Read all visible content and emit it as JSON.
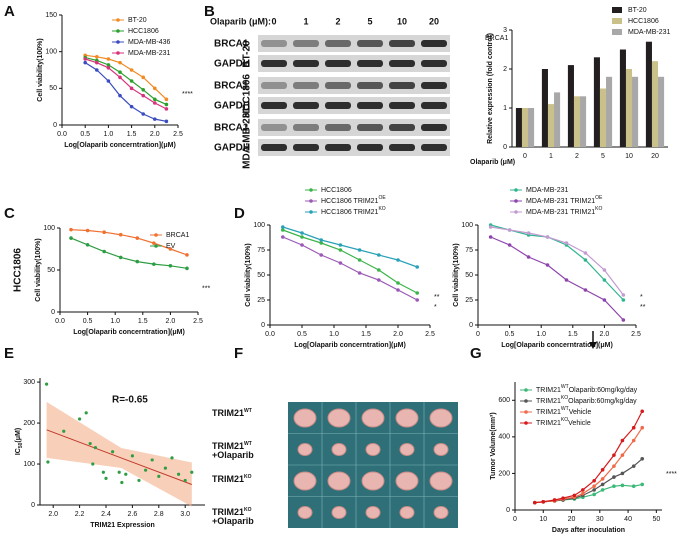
{
  "panels": [
    "A",
    "B",
    "C",
    "D",
    "E",
    "F",
    "G"
  ],
  "blot": {
    "treatment_label": "Olaparib (μM):",
    "doses": [
      "0",
      "1",
      "2",
      "5",
      "10",
      "20"
    ],
    "groups": [
      {
        "cell": "BT-20",
        "rows": [
          "BRCA1",
          "GAPDH"
        ]
      },
      {
        "cell": "HCC1806",
        "rows": [
          "BRCA1",
          "GAPDH"
        ]
      },
      {
        "cell": "MDA-MB-231",
        "rows": [
          "BRCA1",
          "GAPDH"
        ]
      }
    ]
  },
  "tumor": {
    "labels": [
      [
        "TRIM21",
        "WT"
      ],
      [
        "TRIM21",
        "WT",
        "+Olaparib"
      ],
      [
        "TRIM21",
        "KO"
      ],
      [
        "TRIM21",
        "KO",
        "+Olaparib"
      ]
    ]
  },
  "chart_data": [
    {
      "type": "line",
      "xlabel": "Log[Olaparib concerntration](μM)",
      "ylabel": "Cell viability(100%)",
      "xlim": [
        0,
        2.5
      ],
      "xticks": [
        {
          "value": 0,
          "label": "0.0"
        },
        0.5,
        {
          "value": 1,
          "label": "1.0"
        },
        1.5,
        {
          "value": 2,
          "label": "2.0"
        },
        2.5
      ],
      "ylim": [
        0,
        150
      ],
      "yticks": [
        0,
        50,
        100,
        150
      ],
      "legend": "upper right",
      "annotations": [
        "****"
      ],
      "x": [
        0.5,
        0.75,
        1.0,
        1.25,
        1.5,
        1.75,
        2.0,
        2.25
      ],
      "series": [
        {
          "name": "BT-20",
          "color": "#f08a24",
          "values": [
            95,
            93,
            90,
            85,
            75,
            65,
            50,
            35
          ]
        },
        {
          "name": "HCC1806",
          "color": "#2ca02c",
          "values": [
            92,
            88,
            82,
            72,
            60,
            48,
            35,
            28
          ]
        },
        {
          "name": "MDA-MB-436",
          "color": "#3b4cc0",
          "values": [
            85,
            75,
            60,
            40,
            25,
            15,
            8,
            5
          ]
        },
        {
          "name": "MDA-MB-231",
          "color": "#d6337a",
          "values": [
            90,
            85,
            78,
            65,
            50,
            40,
            30,
            22
          ]
        }
      ]
    },
    {
      "type": "bar",
      "title": "BRCA1",
      "xlabel": "Olaparib (μM)",
      "ylabel": "Relative expression (fold control)",
      "ylim": [
        0,
        3
      ],
      "yticks": [
        0,
        1,
        2,
        3
      ],
      "legend": "upper right",
      "categories": [
        "0",
        "1",
        "2",
        "5",
        "10",
        "20"
      ],
      "series": [
        {
          "name": "BT-20",
          "color": "#231f20",
          "values": [
            1,
            2,
            2.1,
            2.3,
            2.5,
            2.7
          ]
        },
        {
          "name": "HCC1806",
          "color": "#c9c08a",
          "values": [
            1,
            1.1,
            1.3,
            1.5,
            2,
            2.2
          ]
        },
        {
          "name": "MDA-MB-231",
          "color": "#a8a8a8",
          "values": [
            1,
            1.4,
            1.3,
            1.8,
            1.8,
            1.8
          ]
        }
      ]
    },
    {
      "type": "line",
      "side_label": "HCC1806",
      "xlabel": "Log[Olaparib concerntration](μM)",
      "ylabel": "Cell viability(100%)",
      "xlim": [
        0,
        2.5
      ],
      "xticks": [
        {
          "value": 0,
          "label": "0.0"
        },
        0.5,
        {
          "value": 1,
          "label": "1.0"
        },
        1.5,
        {
          "value": 2,
          "label": "2.0"
        },
        2.5
      ],
      "ylim": [
        0,
        100
      ],
      "yticks": [
        0,
        50,
        100
      ],
      "legend": "upper right",
      "annotations": [
        "***"
      ],
      "x": [
        0.2,
        0.5,
        0.8,
        1.1,
        1.4,
        1.7,
        2.0,
        2.3
      ],
      "series": [
        {
          "name": "BRCA1",
          "color": "#f07030",
          "values": [
            98,
            97,
            95,
            92,
            88,
            82,
            75,
            68
          ]
        },
        {
          "name": "EV",
          "color": "#2e9e44",
          "values": [
            88,
            80,
            72,
            65,
            60,
            57,
            55,
            52
          ]
        }
      ]
    },
    {
      "type": "line",
      "xlabel": "Log[Olaparib concerntration](μM)",
      "ylabel": "Cell viability(100%)",
      "xlim": [
        0,
        2.5
      ],
      "xticks": [
        {
          "value": 0,
          "label": "0.0"
        },
        0.5,
        {
          "value": 1,
          "label": "1.0"
        },
        1.5,
        {
          "value": 2,
          "label": "2.0"
        },
        2.5
      ],
      "ylim": [
        0,
        100
      ],
      "yticks": [
        0,
        25,
        50,
        75,
        100
      ],
      "legend": "upper left",
      "annotations": [
        "**",
        "*"
      ],
      "x": [
        0.2,
        0.5,
        0.8,
        1.1,
        1.4,
        1.7,
        2.0,
        2.3
      ],
      "series": [
        {
          "name": "HCC1806",
          "color": "#3cb44b",
          "values": [
            95,
            88,
            82,
            75,
            65,
            55,
            42,
            32
          ]
        },
        {
          "name": [
            "HCC1806 TRIM21",
            "OE"
          ],
          "color": "#9b59b6",
          "values": [
            88,
            80,
            70,
            62,
            52,
            45,
            35,
            25
          ]
        },
        {
          "name": [
            "HCC1806 TRIM21",
            "KO"
          ],
          "color": "#2aa1b8",
          "values": [
            98,
            92,
            85,
            80,
            75,
            70,
            65,
            58
          ]
        }
      ]
    },
    {
      "type": "line",
      "xlabel": "Log[Olaparib concerntration](μM)",
      "ylabel": "Cell viability(100%)",
      "xlim": [
        0,
        2.5
      ],
      "xticks": [
        0,
        0.5,
        {
          "value": 1,
          "label": "1.0"
        },
        1.5,
        {
          "value": 2,
          "label": "2.0"
        },
        2.5
      ],
      "ylim": [
        0,
        100
      ],
      "yticks": [
        0,
        25,
        50,
        75,
        100
      ],
      "legend": "upper left",
      "annotations": [
        "*",
        "**"
      ],
      "x": [
        0.2,
        0.5,
        0.8,
        1.1,
        1.4,
        1.7,
        2.0,
        2.3
      ],
      "series": [
        {
          "name": "MDA-MB-231",
          "color": "#2fb58e",
          "values": [
            100,
            95,
            90,
            88,
            80,
            65,
            45,
            25
          ]
        },
        {
          "name": [
            "MDA-MB-231 TRIM21",
            "OE"
          ],
          "color": "#8e44ad",
          "values": [
            88,
            80,
            68,
            60,
            45,
            35,
            25,
            5
          ]
        },
        {
          "name": [
            "MDA-MB-231 TRIM21",
            "KO"
          ],
          "color": "#c39bd3",
          "values": [
            98,
            95,
            92,
            88,
            82,
            72,
            55,
            30
          ]
        }
      ]
    },
    {
      "type": "scatter",
      "xlabel": "TRIM21 Expression",
      "ylabel": [
        "IC",
        "50",
        "(μM)"
      ],
      "annotations": [
        "R=-0.65"
      ],
      "color": "#2e9e44",
      "xlim": [
        1.9,
        3.15
      ],
      "xticks": [
        {
          "value": 2,
          "label": "2.0"
        },
        2.2,
        2.4,
        2.6,
        2.8,
        {
          "value": 3,
          "label": "3.0"
        }
      ],
      "ylim": [
        0,
        310
      ],
      "yticks": [
        0,
        100,
        200,
        300
      ],
      "x": [
        1.95,
        1.96,
        2.08,
        2.2,
        2.25,
        2.28,
        2.3,
        2.32,
        2.38,
        2.4,
        2.45,
        2.5,
        2.52,
        2.55,
        2.6,
        2.65,
        2.7,
        2.75,
        2.8,
        2.85,
        2.9,
        2.95,
        3.0,
        3.05
      ],
      "y": [
        295,
        105,
        180,
        210,
        225,
        150,
        100,
        140,
        80,
        65,
        130,
        80,
        55,
        75,
        120,
        60,
        85,
        110,
        70,
        90,
        115,
        75,
        60,
        80
      ]
    },
    {
      "type": "line",
      "xlabel": "Days after inoculation",
      "ylabel": "Tumor Volume(mm³)",
      "xlim": [
        0,
        52
      ],
      "xticks": [
        0,
        10,
        20,
        30,
        40,
        50
      ],
      "ylim": [
        0,
        700
      ],
      "yticks": [
        0,
        200,
        400,
        600
      ],
      "legend": "upper left",
      "annotations": [
        "****"
      ],
      "x": [
        7,
        10,
        14,
        17,
        21,
        24,
        28,
        31,
        35,
        38,
        42,
        45
      ],
      "series": [
        {
          "name": [
            "TRIM21",
            "WT",
            "Olaparib:60mg/kg/day"
          ],
          "color": "#3cb878",
          "values": [
            40,
            45,
            50,
            55,
            60,
            70,
            85,
            110,
            130,
            135,
            130,
            140
          ]
        },
        {
          "name": [
            "TRIM21",
            "KO",
            "Olaparib:60mg/kg/day"
          ],
          "color": "#555555",
          "values": [
            40,
            45,
            50,
            55,
            65,
            80,
            110,
            140,
            180,
            200,
            240,
            280
          ]
        },
        {
          "name": [
            "TRIM21",
            "WT",
            "Vehicle"
          ],
          "color": "#f06a4a",
          "values": [
            40,
            45,
            50,
            60,
            70,
            90,
            130,
            170,
            240,
            300,
            380,
            450
          ]
        },
        {
          "name": [
            "TRIM21",
            "KO",
            "Vehicle"
          ],
          "color": "#d7191c",
          "values": [
            40,
            45,
            55,
            65,
            80,
            110,
            160,
            220,
            300,
            380,
            450,
            540
          ]
        }
      ]
    }
  ]
}
